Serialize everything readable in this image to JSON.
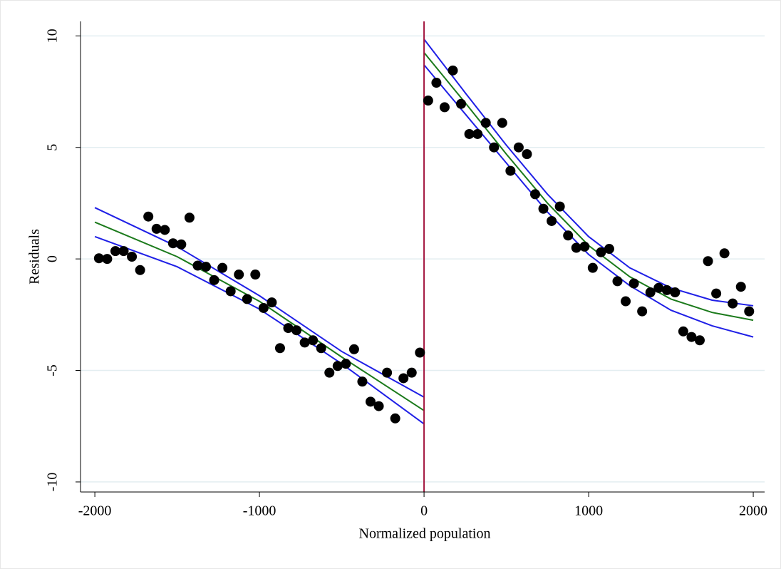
{
  "chart_data": {
    "type": "scatter",
    "x_label": "Normalized population",
    "y_label": "Residuals",
    "xlim": [
      -2087,
      2069
    ],
    "ylim": [
      -10.45,
      10.65
    ],
    "xticks": [
      -2000,
      -1000,
      0,
      1000,
      2000
    ],
    "yticks": [
      -10,
      -5,
      0,
      5,
      10
    ],
    "grid": true,
    "reference_line_x": 0,
    "reference_line_color": "#a3163f",
    "series": [
      {
        "type": "scatter",
        "color": "#000000",
        "x": [
          -1975,
          -1925,
          -1875,
          -1825,
          -1775,
          -1725,
          -1675,
          -1625,
          -1575,
          -1525,
          -1475,
          -1425,
          -1375,
          -1325,
          -1275,
          -1225,
          -1175,
          -1125,
          -1075,
          -1025,
          -975,
          -925,
          -875,
          -825,
          -775,
          -725,
          -675,
          -625,
          -575,
          -525,
          -475,
          -425,
          -375,
          -325,
          -275,
          -225,
          -175,
          -125,
          -75,
          -25
        ],
        "values": [
          0.03,
          0.0,
          0.35,
          0.35,
          0.1,
          -0.5,
          1.9,
          1.35,
          1.3,
          0.7,
          0.65,
          1.85,
          -0.3,
          -0.35,
          -0.95,
          -0.4,
          -1.45,
          -0.7,
          -1.8,
          -0.7,
          -2.2,
          -1.95,
          -4.0,
          -3.1,
          -3.2,
          -3.75,
          -3.65,
          -4.0,
          -5.1,
          -4.8,
          -4.7,
          -4.05,
          -5.5,
          -6.4,
          -6.6,
          -5.1,
          -7.15,
          -5.35,
          -5.1,
          -4.2
        ]
      },
      {
        "type": "scatter",
        "color": "#000000",
        "x": [
          25,
          75,
          125,
          175,
          225,
          275,
          325,
          375,
          425,
          475,
          525,
          575,
          625,
          675,
          725,
          775,
          825,
          875,
          925,
          975,
          1025,
          1075,
          1125,
          1175,
          1225,
          1275,
          1325,
          1375,
          1425,
          1475,
          1525,
          1575,
          1625,
          1675,
          1725,
          1775,
          1825,
          1875,
          1925,
          1975
        ],
        "values": [
          7.1,
          7.9,
          6.8,
          8.45,
          6.95,
          5.6,
          5.6,
          6.1,
          5.0,
          6.1,
          3.95,
          5.0,
          4.7,
          2.9,
          2.25,
          1.7,
          2.35,
          1.05,
          0.5,
          0.55,
          -0.4,
          0.3,
          0.45,
          -1.0,
          -1.9,
          -1.1,
          -2.35,
          -1.5,
          -1.3,
          -1.4,
          -1.5,
          -3.25,
          -3.5,
          -3.65,
          -0.1,
          -1.55,
          0.25,
          -2.0,
          -1.25,
          -2.35
        ]
      },
      {
        "type": "line",
        "color": "#1f1fe6",
        "x": [
          -2000,
          -1500,
          -1000,
          -500,
          0
        ],
        "values": [
          2.3,
          0.55,
          -1.65,
          -4.15,
          -6.2
        ]
      },
      {
        "type": "line",
        "color": "#1f1fe6",
        "x": [
          -2000,
          -1500,
          -1000,
          -500,
          0
        ],
        "values": [
          1.0,
          -0.35,
          -2.25,
          -4.7,
          -7.4
        ]
      },
      {
        "type": "line",
        "color": "#1b7a1b",
        "x": [
          -2000,
          -1500,
          -1000,
          -500,
          0
        ],
        "values": [
          1.65,
          0.1,
          -1.9,
          -4.4,
          -6.8
        ]
      },
      {
        "type": "line",
        "color": "#1f1fe6",
        "x": [
          0,
          250,
          500,
          750,
          1000,
          1250,
          1500,
          1750,
          2000
        ],
        "values": [
          9.85,
          7.45,
          5.1,
          2.9,
          1.0,
          -0.4,
          -1.3,
          -1.85,
          -2.1
        ]
      },
      {
        "type": "line",
        "color": "#1f1fe6",
        "x": [
          0,
          250,
          500,
          750,
          1000,
          1250,
          1500,
          1750,
          2000
        ],
        "values": [
          8.7,
          6.5,
          4.3,
          2.1,
          0.2,
          -1.2,
          -2.3,
          -3.0,
          -3.5
        ]
      },
      {
        "type": "line",
        "color": "#1b7a1b",
        "x": [
          0,
          250,
          500,
          750,
          1000,
          1250,
          1500,
          1750,
          2000
        ],
        "values": [
          9.25,
          7.0,
          4.7,
          2.5,
          0.6,
          -0.8,
          -1.8,
          -2.4,
          -2.75
        ]
      }
    ]
  }
}
